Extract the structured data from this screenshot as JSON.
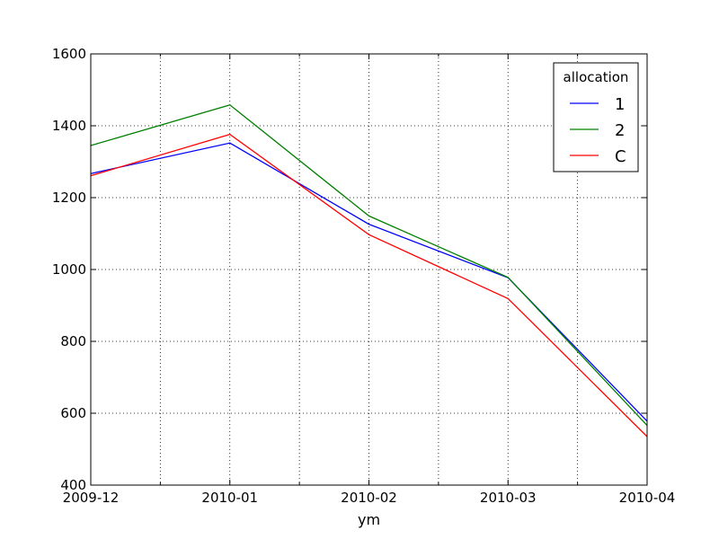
{
  "chart_data": {
    "type": "line",
    "title": "",
    "xlabel": "ym",
    "ylabel": "",
    "x": [
      "2009-12",
      "2010-01",
      "2010-02",
      "2010-03",
      "2010-04"
    ],
    "ylim": [
      400,
      1600
    ],
    "yticks": [
      400,
      600,
      800,
      1000,
      1200,
      1400,
      1600
    ],
    "grid": true,
    "legend": {
      "title": "allocation",
      "placement": "top-right"
    },
    "series": [
      {
        "name": "1",
        "color": "#0000ff",
        "values": [
          1267,
          1352,
          1126,
          977,
          578
        ]
      },
      {
        "name": "2",
        "color": "#008000",
        "values": [
          1345,
          1458,
          1149,
          978,
          566
        ]
      },
      {
        "name": "C",
        "color": "#ff0000",
        "values": [
          1261,
          1376,
          1097,
          919,
          535
        ]
      }
    ]
  }
}
